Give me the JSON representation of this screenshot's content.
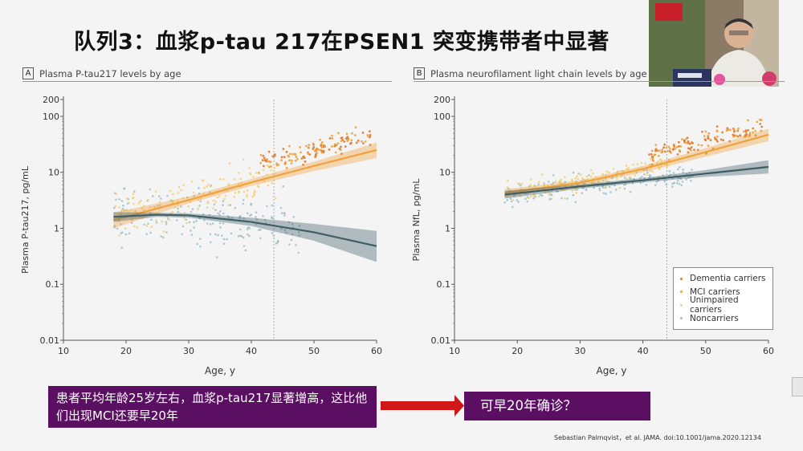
{
  "slide": {
    "title": "队列3：血浆p-tau 217在PSEN1 突变携带者中显著",
    "note_left": "患者平均年龄25岁左右，血浆p-tau217显著增高，这比他们出现MCI还要早20年",
    "note_right": "可早20年确诊？",
    "citation": "Sebastian Palmqvist，et al. JAMA. doi:10.1001/jama.2020.12134",
    "arrow_color": "#d01818",
    "box_color": "#5b0f63"
  },
  "chart_data": [
    {
      "panel_letter": "A",
      "type": "scatter",
      "title": "Plasma P-tau217 levels by age",
      "xlabel": "Age, y",
      "ylabel": "Plasma P-tau217, pg/mL",
      "xlim": [
        10,
        60
      ],
      "ylim": [
        0.01,
        200
      ],
      "yscale": "log",
      "x_ticks": [
        "10",
        "20",
        "30",
        "40",
        "50",
        "60"
      ],
      "y_ticks": [
        "0.01",
        "0.1",
        "1",
        "10",
        "100",
        "200"
      ],
      "vline_x": 43.6,
      "series": [
        {
          "name": "Carriers",
          "color": "#f0a23c",
          "fit": [
            [
              18,
              1.4
            ],
            [
              30,
              3.2
            ],
            [
              40,
              6.6
            ],
            [
              50,
              13
            ],
            [
              60,
              25
            ]
          ],
          "band_low": [
            [
              18,
              1.0
            ],
            [
              30,
              2.8
            ],
            [
              40,
              5.7
            ],
            [
              50,
              10.5
            ],
            [
              60,
              18
            ]
          ],
          "band_high": [
            [
              18,
              1.9
            ],
            [
              30,
              3.7
            ],
            [
              40,
              7.6
            ],
            [
              50,
              15.5
            ],
            [
              60,
              34
            ]
          ]
        },
        {
          "name": "Noncarriers",
          "color": "#3f5e66",
          "fit": [
            [
              18,
              1.6
            ],
            [
              25,
              1.75
            ],
            [
              30,
              1.7
            ],
            [
              40,
              1.3
            ],
            [
              50,
              0.85
            ],
            [
              60,
              0.48
            ]
          ],
          "band_low": [
            [
              18,
              1.3
            ],
            [
              25,
              1.6
            ],
            [
              30,
              1.55
            ],
            [
              40,
              1.1
            ],
            [
              50,
              0.6
            ],
            [
              60,
              0.25
            ]
          ],
          "band_high": [
            [
              18,
              1.95
            ],
            [
              25,
              1.9
            ],
            [
              30,
              1.85
            ],
            [
              40,
              1.55
            ],
            [
              50,
              1.2
            ],
            [
              60,
              0.9
            ]
          ]
        }
      ]
    },
    {
      "panel_letter": "B",
      "type": "scatter",
      "title": "Plasma neurofilament light chain levels by age",
      "xlabel": "Age, y",
      "ylabel": "Plasma NfL, pg/mL",
      "xlim": [
        10,
        60
      ],
      "ylim": [
        0.01,
        200
      ],
      "yscale": "log",
      "x_ticks": [
        "10",
        "20",
        "30",
        "40",
        "50",
        "60"
      ],
      "y_ticks": [
        "0.01",
        "0.1",
        "1",
        "10",
        "100",
        "200"
      ],
      "vline_x": 43.8,
      "legend": [
        "Dementia carriers",
        "MCI carriers",
        "Unimpaired carriers",
        "Noncarriers"
      ],
      "legend_colors": [
        "#e07b2a",
        "#f0a23c",
        "#f2d27a",
        "#9fc0c8"
      ],
      "series": [
        {
          "name": "Carriers",
          "color": "#f0a23c",
          "fit": [
            [
              18,
              4.3
            ],
            [
              30,
              6.5
            ],
            [
              40,
              11.5
            ],
            [
              50,
              23
            ],
            [
              60,
              47
            ]
          ],
          "band_low": [
            [
              18,
              3.6
            ],
            [
              30,
              5.8
            ],
            [
              40,
              10
            ],
            [
              50,
              19
            ],
            [
              60,
              36
            ]
          ],
          "band_high": [
            [
              18,
              5.0
            ],
            [
              30,
              7.2
            ],
            [
              40,
              13
            ],
            [
              50,
              27
            ],
            [
              60,
              60
            ]
          ]
        },
        {
          "name": "Noncarriers",
          "color": "#3f5e66",
          "fit": [
            [
              18,
              4.0
            ],
            [
              30,
              5.6
            ],
            [
              40,
              7.2
            ],
            [
              50,
              9.5
            ],
            [
              60,
              12.5
            ]
          ],
          "band_low": [
            [
              18,
              3.4
            ],
            [
              30,
              5.1
            ],
            [
              40,
              6.6
            ],
            [
              50,
              8.3
            ],
            [
              60,
              9.5
            ]
          ],
          "band_high": [
            [
              18,
              4.7
            ],
            [
              30,
              6.1
            ],
            [
              40,
              7.9
            ],
            [
              50,
              11
            ],
            [
              60,
              16.5
            ]
          ]
        }
      ]
    }
  ]
}
